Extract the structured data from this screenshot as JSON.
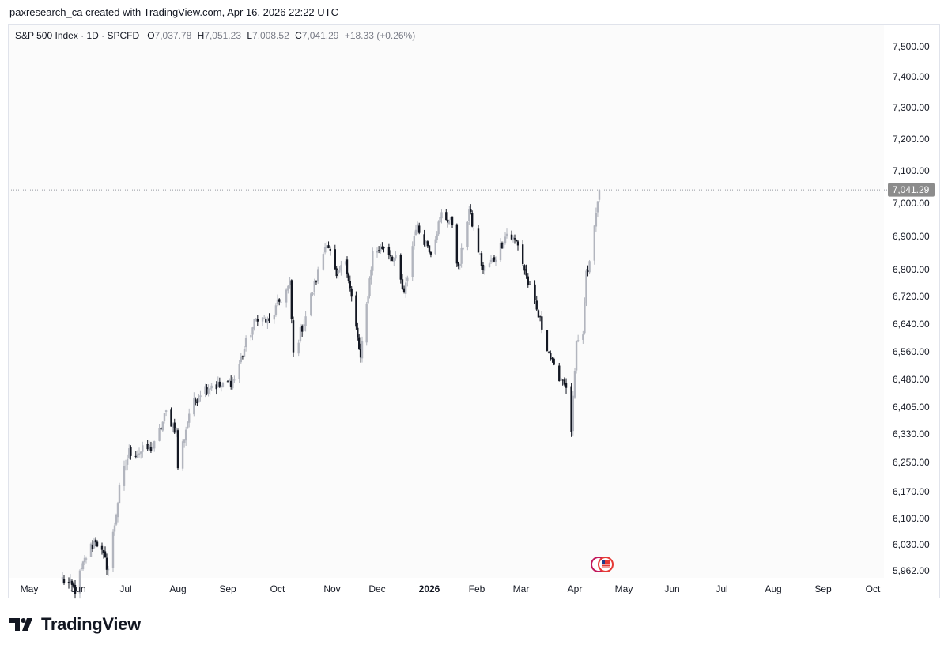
{
  "caption": "paxresearch_ca created with TradingView.com, Apr 16, 2026 22:22 UTC",
  "legend": {
    "symbol": "S&P 500 Index · 1D · SPCFD",
    "open_label": "O",
    "open": "7,037.78",
    "high_label": "H",
    "high": "7,051.23",
    "low_label": "L",
    "low": "7,008.52",
    "close_label": "C",
    "close": "7,041.29",
    "change": "+18.33 (+0.26%)"
  },
  "price_tag": "7,041.29",
  "brand": "TradingView",
  "colors": {
    "up": "#b2b5be",
    "down": "#131722",
    "grid": "#f0f3fa",
    "price_tag": "#8c8c8c"
  },
  "chart_data": {
    "type": "candlestick",
    "title": "S&P 500 Index · 1D · SPCFD",
    "y_ticks": [
      5962,
      6030,
      6100,
      6170,
      6250,
      6330,
      6405,
      6480,
      6560,
      6640,
      6720,
      6800,
      6900,
      7000,
      7100,
      7200,
      7300,
      7400,
      7500
    ],
    "y_tick_labels": [
      "5,962.00",
      "6,030.00",
      "6,100.00",
      "6,170.00",
      "6,250.00",
      "6,330.00",
      "6,405.00",
      "6,480.00",
      "6,560.00",
      "6,640.00",
      "6,720.00",
      "6,800.00",
      "6,900.00",
      "7,000.00",
      "7,100.00",
      "7,200.00",
      "7,300.00",
      "7,400.00",
      "7,500.00"
    ],
    "x_ticks": [
      "May",
      "Jun",
      "Jul",
      "Aug",
      "Sep",
      "Oct",
      "Nov",
      "Dec",
      "2026",
      "Feb",
      "Mar",
      "Apr",
      "May",
      "Jun",
      "Jul",
      "Aug",
      "Sep",
      "Oct"
    ],
    "x_tick_dates": [
      "2025-05-01",
      "2025-06-01",
      "2025-07-01",
      "2025-08-01",
      "2025-09-01",
      "2025-10-01",
      "2025-11-01",
      "2025-12-01",
      "2026-01-01",
      "2026-02-01",
      "2026-03-01",
      "2026-04-01",
      "2026-05-01",
      "2026-06-01",
      "2026-07-01",
      "2026-08-01",
      "2026-09-01",
      "2026-10-01"
    ],
    "last_price": 7041.29,
    "series_points": [
      [
        "2025-05-22",
        5940
      ],
      [
        "2025-05-30",
        5912
      ],
      [
        "2025-06-06",
        6000
      ],
      [
        "2025-06-12",
        6045
      ],
      [
        "2025-06-20",
        5968
      ],
      [
        "2025-06-27",
        6175
      ],
      [
        "2025-07-03",
        6279
      ],
      [
        "2025-07-10",
        6280
      ],
      [
        "2025-07-18",
        6297
      ],
      [
        "2025-07-25",
        6389
      ],
      [
        "2025-07-31",
        6339
      ],
      [
        "2025-08-01",
        6238
      ],
      [
        "2025-08-08",
        6389
      ],
      [
        "2025-08-15",
        6449
      ],
      [
        "2025-08-22",
        6466
      ],
      [
        "2025-08-29",
        6460
      ],
      [
        "2025-09-05",
        6481
      ],
      [
        "2025-09-12",
        6584
      ],
      [
        "2025-09-19",
        6664
      ],
      [
        "2025-09-26",
        6643
      ],
      [
        "2025-10-03",
        6715
      ],
      [
        "2025-10-08",
        6753
      ],
      [
        "2025-10-10",
        6552
      ],
      [
        "2025-10-17",
        6664
      ],
      [
        "2025-10-24",
        6791
      ],
      [
        "2025-10-29",
        6890
      ],
      [
        "2025-11-04",
        6771
      ],
      [
        "2025-11-10",
        6832
      ],
      [
        "2025-11-20",
        6538
      ],
      [
        "2025-11-28",
        6849
      ],
      [
        "2025-12-05",
        6870
      ],
      [
        "2025-12-12",
        6827
      ],
      [
        "2025-12-17",
        6721
      ],
      [
        "2025-12-24",
        6932
      ],
      [
        "2026-01-02",
        6858
      ],
      [
        "2026-01-09",
        6966
      ],
      [
        "2026-01-16",
        6940
      ],
      [
        "2026-01-20",
        6796
      ],
      [
        "2026-01-27",
        6978
      ],
      [
        "2026-02-05",
        6798
      ],
      [
        "2026-02-12",
        6832
      ],
      [
        "2026-02-20",
        6909
      ],
      [
        "2026-02-27",
        6878
      ],
      [
        "2026-03-06",
        6740
      ],
      [
        "2026-03-13",
        6632
      ],
      [
        "2026-03-20",
        6506
      ],
      [
        "2026-03-26",
        6477
      ],
      [
        "2026-03-30",
        6343
      ],
      [
        "2026-04-02",
        6575
      ],
      [
        "2026-04-06",
        6611
      ],
      [
        "2026-04-08",
        6783
      ],
      [
        "2026-04-10",
        6816
      ],
      [
        "2026-04-14",
        6967
      ],
      [
        "2026-04-16",
        7041
      ]
    ]
  }
}
